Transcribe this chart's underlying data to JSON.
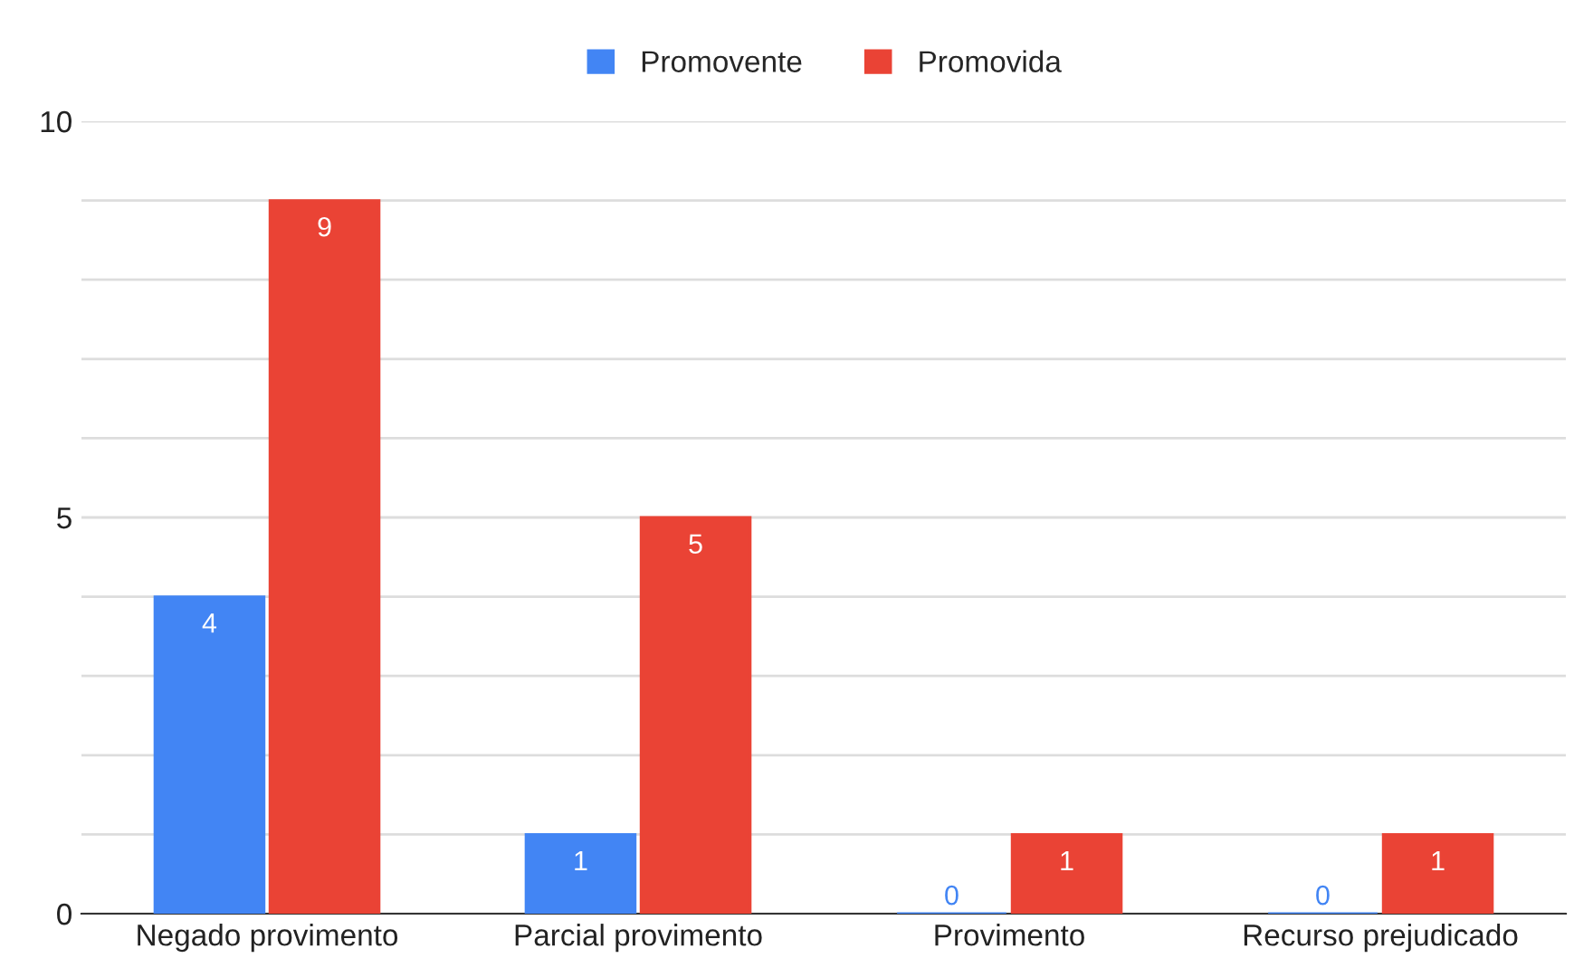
{
  "chart_data": {
    "type": "bar",
    "categories": [
      "Negado provimento",
      "Parcial provimento",
      "Provimento",
      "Recurso prejudicado"
    ],
    "series": [
      {
        "name": "Promovente",
        "color": "#4285f4",
        "values": [
          4,
          1,
          0,
          0
        ]
      },
      {
        "name": "Promovida",
        "color": "#ea4335",
        "values": [
          9,
          5,
          1,
          1
        ]
      }
    ],
    "ylim": [
      0,
      10
    ],
    "yticks": [
      0,
      {
        "value": 1,
        "label": null
      },
      {
        "value": 2,
        "label": null
      },
      {
        "value": 3,
        "label": null
      },
      {
        "value": 4,
        "label": null
      },
      5,
      {
        "value": 6,
        "label": null
      },
      {
        "value": 7,
        "label": null
      },
      {
        "value": 8,
        "label": null
      },
      {
        "value": 9,
        "label": null
      },
      10
    ],
    "grid": "y",
    "legend": "top",
    "data_labels": true
  }
}
